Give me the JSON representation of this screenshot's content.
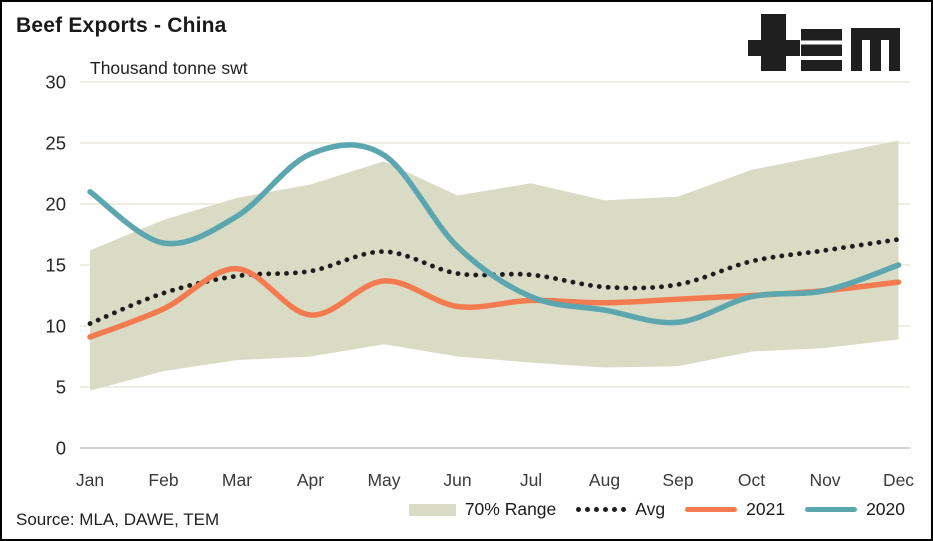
{
  "title": "Beef Exports - China",
  "subtitle": "Thousand tonne swt",
  "source": "Source: MLA, DAWE, TEM",
  "logo": {
    "name": "tem-logo",
    "color": "#1f1f1f"
  },
  "colors": {
    "band": "#D9DBC5",
    "avg": "#1E1E1E",
    "y2021": "#F47B4F",
    "y2020": "#5BA6AF",
    "gridline": "#F0EEE2",
    "axisline": "#D2D2D2",
    "tick_text": "#3a3a3a"
  },
  "legend": {
    "items": [
      {
        "label": "70% Range",
        "swatch": "band-swatch"
      },
      {
        "label": "Avg",
        "swatch": "dotted-line-swatch"
      },
      {
        "label": "2021",
        "swatch": "orange-line-swatch"
      },
      {
        "label": "2020",
        "swatch": "teal-line-swatch"
      }
    ]
  },
  "chart_data": {
    "type": "line",
    "title": "Beef Exports - China",
    "ylabel": "Thousand tonne swt",
    "xlabel": "",
    "grid": true,
    "legend_position": "bottom",
    "ylim": [
      0,
      30
    ],
    "yticks": [
      0,
      5,
      10,
      15,
      20,
      25,
      30
    ],
    "categories": [
      "Jan",
      "Feb",
      "Mar",
      "Apr",
      "May",
      "Jun",
      "Jul",
      "Aug",
      "Sep",
      "Oct",
      "Nov",
      "Dec"
    ],
    "series": [
      {
        "name": "70% Range",
        "type": "band",
        "upper": [
          16.2,
          18.7,
          20.5,
          21.6,
          23.5,
          20.7,
          21.7,
          20.3,
          20.6,
          22.8,
          24.0,
          25.2
        ],
        "lower": [
          4.7,
          6.3,
          7.2,
          7.5,
          8.5,
          7.5,
          7.0,
          6.6,
          6.7,
          7.9,
          8.2,
          8.9
        ]
      },
      {
        "name": "Avg",
        "type": "dotted-line",
        "values": [
          10.2,
          12.7,
          14.1,
          14.5,
          16.1,
          14.3,
          14.2,
          13.2,
          13.4,
          15.3,
          16.2,
          17.1
        ]
      },
      {
        "name": "2021",
        "type": "line",
        "values": [
          9.1,
          11.4,
          14.7,
          10.9,
          13.7,
          11.6,
          12.1,
          11.9,
          12.2,
          12.5,
          12.9,
          13.6
        ]
      },
      {
        "name": "2020",
        "type": "line",
        "values": [
          21.0,
          16.8,
          19.0,
          24.1,
          24.0,
          16.5,
          12.4,
          11.3,
          10.3,
          12.4,
          12.9,
          15.0
        ]
      }
    ]
  }
}
